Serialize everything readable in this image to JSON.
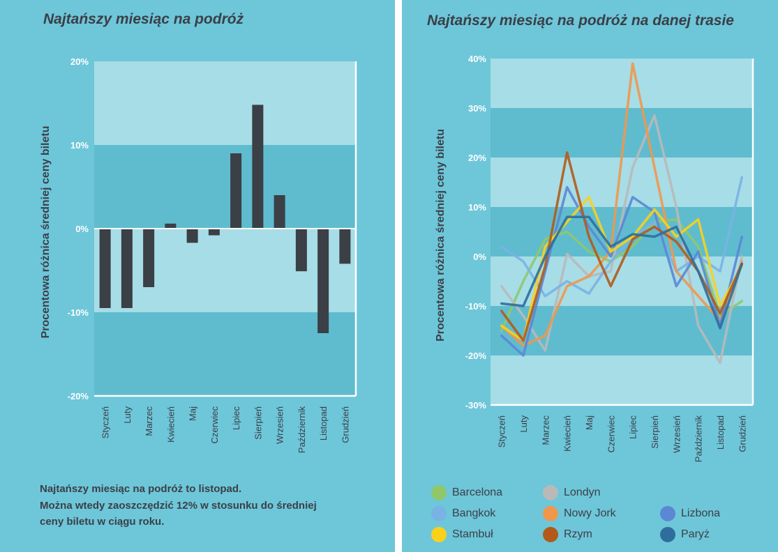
{
  "chart_data": [
    {
      "type": "bar",
      "title": "Najtańszy miesiąc na podróż",
      "ylabel": "Procentowa różnica średniej ceny biletu",
      "categories": [
        "Styczeń",
        "Luty",
        "Marzec",
        "Kwiecień",
        "Maj",
        "Czerwiec",
        "Lipiec",
        "Sierpień",
        "Wrzesień",
        "Październik",
        "Listopad",
        "Grudzień"
      ],
      "values": [
        -9.5,
        -9.5,
        -7.0,
        0.6,
        -1.7,
        -0.8,
        9.0,
        14.8,
        4.0,
        -5.1,
        -12.5,
        -4.2
      ],
      "ylim": [
        -20,
        20
      ],
      "yticks": [
        20,
        10,
        0,
        -10,
        -20
      ],
      "ytick_labels": [
        "20%",
        "10%",
        "0%",
        "-10%",
        "-20%"
      ],
      "bar_color": "#3b3f46",
      "band_colors": [
        "#a7dde6",
        "#5fbccf"
      ]
    },
    {
      "type": "line",
      "title": "Najtańszy miesiąc na podróż na danej trasie",
      "ylabel": "Procentowa różnica średniej ceny biletu",
      "categories": [
        "Styczeń",
        "Luty",
        "Marzec",
        "Kwiecień",
        "Maj",
        "Czerwiec",
        "Lipiec",
        "Sierpień",
        "Wrzesień",
        "Październik",
        "Listopad",
        "Grudzień"
      ],
      "ylim": [
        -30,
        40
      ],
      "yticks": [
        40,
        30,
        20,
        10,
        0,
        -10,
        -20,
        -30
      ],
      "ytick_labels": [
        "40%",
        "30%",
        "20%",
        "10%",
        "0%",
        "-10%",
        "-20%",
        "-30%"
      ],
      "band_colors": [
        "#a7dde6",
        "#5fbccf"
      ],
      "legend_position": "bottom",
      "series": [
        {
          "name": "Barcelona",
          "color": "#8fc86b",
          "values": [
            -15,
            -5,
            3.5,
            5,
            1,
            -1,
            2,
            7,
            7.5,
            2,
            -12,
            -9
          ]
        },
        {
          "name": "Londyn",
          "color": "#b9b9b9",
          "values": [
            -6,
            -12,
            -19,
            0.5,
            -4,
            -3,
            18,
            28.5,
            10,
            -14,
            -21.5,
            0
          ]
        },
        {
          "name": "Bangkok",
          "color": "#79b3e4",
          "values": [
            2,
            -1,
            -8,
            -5,
            -7.5,
            -1,
            4,
            7,
            -3,
            0,
            -3,
            16
          ]
        },
        {
          "name": "Nowy Jork",
          "color": "#f0974d",
          "values": [
            -14,
            -18,
            -16,
            -6,
            -4,
            1,
            39,
            18,
            -3,
            -8,
            -13,
            -1
          ]
        },
        {
          "name": "Lizbona",
          "color": "#5b87d4",
          "values": [
            -16,
            -20,
            -3,
            14,
            6,
            0,
            12,
            9,
            -6,
            1,
            -14,
            4
          ]
        },
        {
          "name": "Stambuł",
          "color": "#fad11a",
          "values": [
            -14,
            -17,
            2,
            7,
            12,
            1,
            4,
            9.5,
            4,
            7.5,
            -10,
            -2
          ]
        },
        {
          "name": "Rzym",
          "color": "#b35a1a",
          "values": [
            -11,
            -17,
            -2,
            21,
            4,
            -6,
            3.5,
            6,
            3,
            -3,
            -11.5,
            -1.5
          ]
        },
        {
          "name": "Paryż",
          "color": "#2f6e9c",
          "values": [
            -9.5,
            -10,
            0,
            8,
            8,
            2,
            4.5,
            4,
            6,
            -3,
            -14.5,
            -1.5
          ]
        }
      ]
    }
  ],
  "note": {
    "line1": "Najtańszy miesiąc na podróż to listopad.",
    "line2": "Można wtedy zaoszczędzić 12% w stosunku do średniej",
    "line3": "ceny biletu w ciągu roku."
  }
}
